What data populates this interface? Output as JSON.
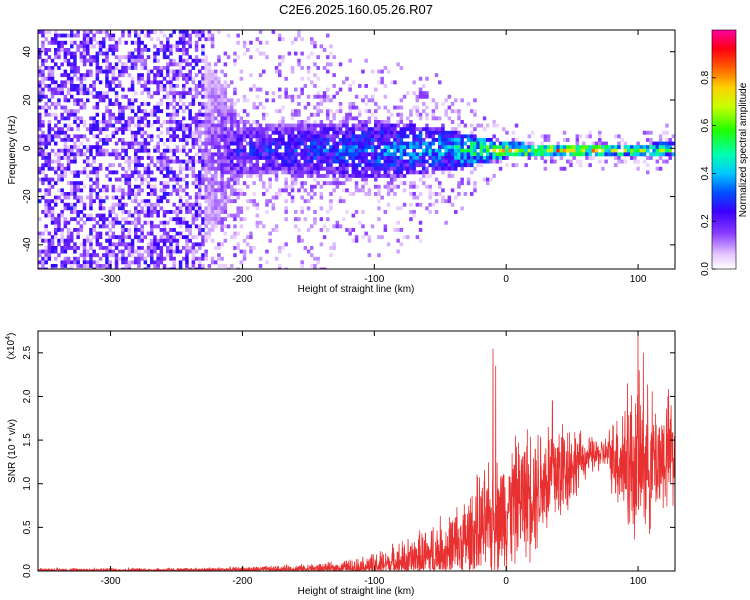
{
  "title": "C2E6.2025.160.05.26.R07",
  "chart_data": [
    {
      "type": "heatmap",
      "xlabel": "Height of straight line (km)",
      "ylabel": "Frequency (Hz)",
      "xlim": [
        -355,
        128
      ],
      "ylim": [
        -50,
        49
      ],
      "xticks": [
        -300,
        -200,
        -100,
        0,
        100
      ],
      "yticks": [
        -40,
        -20,
        0,
        20,
        40
      ],
      "colorbar": {
        "label": "Normalized spectral amplitude",
        "range": [
          0.0,
          1.0
        ],
        "ticks": [
          "0.0",
          "0.2",
          "0.4",
          "0.6",
          "0.8"
        ],
        "tick_values": [
          0.0,
          0.2,
          0.4,
          0.6,
          0.8
        ]
      },
      "description_points": [
        {
          "x": -340,
          "band_width_hz": 50,
          "amplitude": 0.12
        },
        {
          "x": -230,
          "band_width_hz": 40,
          "amplitude": 0.14
        },
        {
          "x": -200,
          "band_width_hz": 10,
          "amplitude": 0.3
        },
        {
          "x": -100,
          "band_width_hz": 12,
          "amplitude": 0.4
        },
        {
          "x": -50,
          "band_width_hz": 9,
          "amplitude": 0.45
        },
        {
          "x": 0,
          "band_width_hz": 3,
          "amplitude": 0.8
        },
        {
          "x": 60,
          "band_width_hz": 2,
          "amplitude": 0.9
        },
        {
          "x": 125,
          "band_width_hz": 3,
          "amplitude": 0.6
        }
      ]
    },
    {
      "type": "line",
      "xlabel": "Height of straight line (km)",
      "ylabel": "SNR (10 * v/v)",
      "scale_label": "(x10",
      "scale_exp": "4",
      "scale_close": ")",
      "xlim": [
        -355,
        128
      ],
      "ylim": [
        0.0,
        2.75
      ],
      "xticks": [
        -300,
        -200,
        -100,
        0,
        100
      ],
      "yticks": [
        "0.0",
        "0.5",
        "1.0",
        "1.5",
        "2.0",
        "2.5"
      ],
      "ytick_values": [
        0.0,
        0.5,
        1.0,
        1.5,
        2.0,
        2.5
      ],
      "color": "#e83030",
      "envelope": {
        "x": [
          -355,
          -250,
          -180,
          -130,
          -100,
          -70,
          -40,
          -20,
          0,
          20,
          40,
          60,
          75,
          90,
          100,
          115,
          128
        ],
        "base": [
          0.01,
          0.01,
          0.02,
          0.03,
          0.06,
          0.12,
          0.25,
          0.45,
          0.7,
          0.95,
          1.15,
          1.3,
          1.35,
          1.25,
          1.2,
          1.3,
          1.35
        ],
        "amp": [
          0.02,
          0.02,
          0.03,
          0.06,
          0.12,
          0.25,
          0.4,
          0.55,
          0.6,
          0.65,
          0.6,
          0.2,
          0.15,
          0.7,
          0.8,
          0.6,
          0.6
        ]
      },
      "peaks": [
        {
          "x": -10,
          "y": 2.55
        },
        {
          "x": -8,
          "y": 2.35
        },
        {
          "x": 35,
          "y": 1.95
        },
        {
          "x": 100,
          "y": 2.75
        },
        {
          "x": 104,
          "y": 2.5
        },
        {
          "x": 92,
          "y": 2.15
        },
        {
          "x": 125,
          "y": 1.9
        }
      ]
    }
  ]
}
